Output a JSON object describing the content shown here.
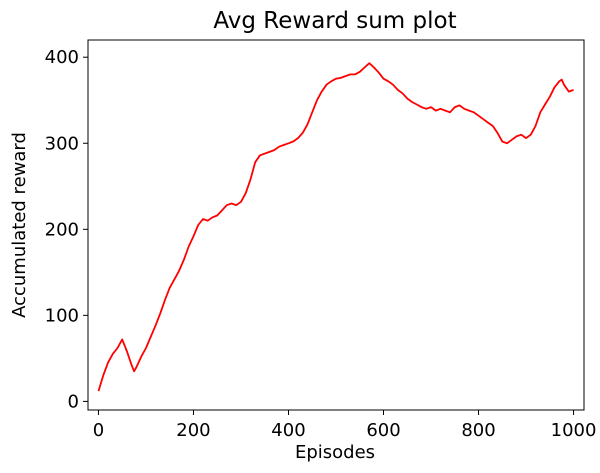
{
  "chart_data": {
    "type": "line",
    "title": "Avg Reward sum plot",
    "xlabel": "Episodes",
    "ylabel": "Accumulated reward",
    "xlim": [
      -22,
      1022
    ],
    "ylim": [
      -10,
      420
    ],
    "xticks": [
      0,
      200,
      400,
      600,
      800,
      1000
    ],
    "xtick_labels": [
      "0",
      "200",
      "400",
      "600",
      "800",
      "1000"
    ],
    "yticks": [
      0,
      100,
      200,
      300,
      400
    ],
    "ytick_labels": [
      "0",
      "100",
      "200",
      "300",
      "400"
    ],
    "grid": false,
    "series": [
      {
        "color": "#ff0000",
        "points": [
          [
            0,
            12
          ],
          [
            10,
            30
          ],
          [
            20,
            45
          ],
          [
            30,
            55
          ],
          [
            40,
            62
          ],
          [
            50,
            72
          ],
          [
            60,
            58
          ],
          [
            70,
            42
          ],
          [
            75,
            35
          ],
          [
            80,
            40
          ],
          [
            90,
            52
          ],
          [
            100,
            62
          ],
          [
            110,
            75
          ],
          [
            120,
            88
          ],
          [
            130,
            102
          ],
          [
            140,
            118
          ],
          [
            150,
            132
          ],
          [
            160,
            142
          ],
          [
            170,
            152
          ],
          [
            180,
            165
          ],
          [
            190,
            180
          ],
          [
            200,
            192
          ],
          [
            210,
            205
          ],
          [
            220,
            212
          ],
          [
            230,
            210
          ],
          [
            240,
            214
          ],
          [
            250,
            216
          ],
          [
            260,
            222
          ],
          [
            270,
            228
          ],
          [
            280,
            230
          ],
          [
            290,
            228
          ],
          [
            300,
            232
          ],
          [
            310,
            242
          ],
          [
            320,
            258
          ],
          [
            330,
            278
          ],
          [
            340,
            286
          ],
          [
            350,
            288
          ],
          [
            360,
            290
          ],
          [
            370,
            292
          ],
          [
            380,
            296
          ],
          [
            390,
            298
          ],
          [
            400,
            300
          ],
          [
            410,
            302
          ],
          [
            420,
            306
          ],
          [
            430,
            312
          ],
          [
            440,
            322
          ],
          [
            450,
            336
          ],
          [
            460,
            350
          ],
          [
            470,
            360
          ],
          [
            480,
            368
          ],
          [
            490,
            372
          ],
          [
            500,
            375
          ],
          [
            510,
            376
          ],
          [
            520,
            378
          ],
          [
            530,
            380
          ],
          [
            540,
            380
          ],
          [
            550,
            383
          ],
          [
            560,
            388
          ],
          [
            570,
            393
          ],
          [
            580,
            388
          ],
          [
            590,
            382
          ],
          [
            600,
            375
          ],
          [
            610,
            372
          ],
          [
            620,
            368
          ],
          [
            630,
            362
          ],
          [
            640,
            358
          ],
          [
            650,
            352
          ],
          [
            660,
            348
          ],
          [
            670,
            345
          ],
          [
            680,
            342
          ],
          [
            690,
            340
          ],
          [
            700,
            342
          ],
          [
            710,
            338
          ],
          [
            720,
            340
          ],
          [
            730,
            338
          ],
          [
            740,
            336
          ],
          [
            750,
            342
          ],
          [
            760,
            344
          ],
          [
            770,
            340
          ],
          [
            780,
            338
          ],
          [
            790,
            336
          ],
          [
            800,
            332
          ],
          [
            810,
            328
          ],
          [
            820,
            324
          ],
          [
            830,
            320
          ],
          [
            840,
            312
          ],
          [
            850,
            302
          ],
          [
            860,
            300
          ],
          [
            870,
            304
          ],
          [
            880,
            308
          ],
          [
            890,
            310
          ],
          [
            900,
            306
          ],
          [
            910,
            310
          ],
          [
            920,
            320
          ],
          [
            930,
            336
          ],
          [
            940,
            345
          ],
          [
            950,
            354
          ],
          [
            960,
            365
          ],
          [
            970,
            372
          ],
          [
            975,
            374
          ],
          [
            980,
            368
          ],
          [
            990,
            360
          ],
          [
            1000,
            362
          ]
        ]
      }
    ]
  }
}
